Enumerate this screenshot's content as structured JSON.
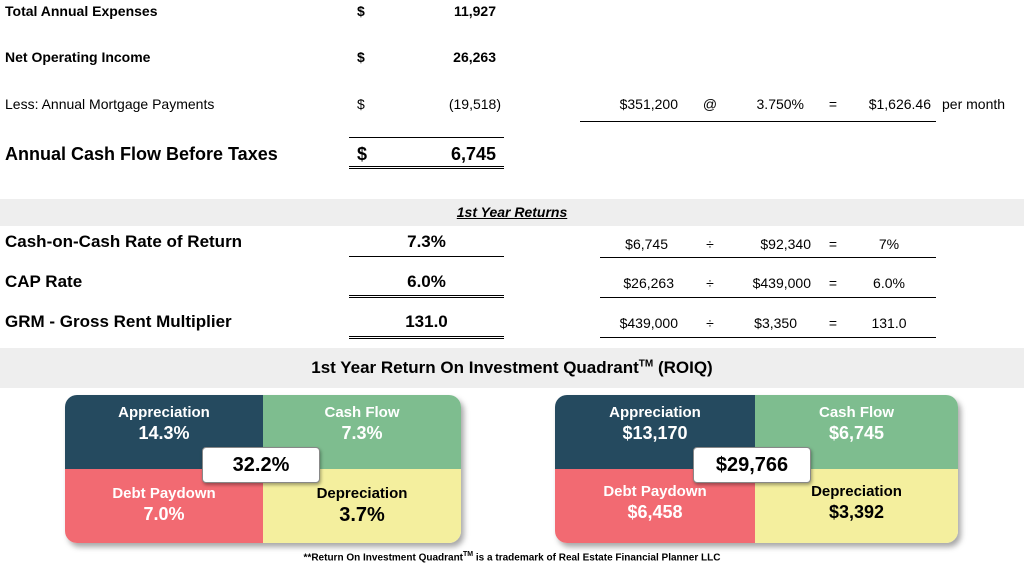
{
  "summary": {
    "expenses_label": "Total Annual Expenses",
    "expenses_symbol": "$",
    "expenses_value": "11,927",
    "noi_label": "Net Operating Income",
    "noi_symbol": "$",
    "noi_value": "26,263",
    "mortgage_label": "Less: Annual Mortgage Payments",
    "mortgage_symbol": "$",
    "mortgage_value": "(19,518)",
    "cashflow_label": "Annual Cash Flow Before Taxes",
    "cashflow_symbol": "$",
    "cashflow_value": "6,745"
  },
  "mortgage_calc": {
    "principal": "$351,200",
    "at": "@",
    "rate": "3.750%",
    "equals": "=",
    "payment": "$1,626.46",
    "period": "per month"
  },
  "returns": {
    "heading": "1st Year Returns",
    "rows": [
      {
        "label": "Cash-on-Cash Rate of Return",
        "value": "7.3%",
        "a": "$6,745",
        "op": "÷",
        "b": "$92,340",
        "eq": "=",
        "result": "7%"
      },
      {
        "label": "CAP Rate",
        "value": "6.0%",
        "a": "$26,263",
        "op": "÷",
        "b": "$439,000",
        "eq": "=",
        "result": "6.0%"
      },
      {
        "label": "GRM - Gross Rent Multiplier",
        "value": "131.0",
        "a": "$439,000",
        "op": "÷",
        "b": "$3,350",
        "eq": "=",
        "result": "131.0"
      }
    ]
  },
  "roiq": {
    "title": "1st Year Return On Investment Quadrant",
    "title_tm": "TM",
    "title_suffix": "(ROIQ)",
    "percent": {
      "appreciation_label": "Appreciation",
      "appreciation_value": "14.3%",
      "cashflow_label": "Cash Flow",
      "cashflow_value": "7.3%",
      "debt_label": "Debt Paydown",
      "debt_value": "7.0%",
      "depreciation_label": "Depreciation",
      "depreciation_value": "3.7%",
      "total": "32.2%"
    },
    "dollars": {
      "appreciation_label": "Appreciation",
      "appreciation_value": "$13,170",
      "cashflow_label": "Cash Flow",
      "cashflow_value": "$6,745",
      "debt_label": "Debt Paydown",
      "debt_value": "$6,458",
      "depreciation_label": "Depreciation",
      "depreciation_value": "$3,392",
      "total": "$29,766"
    },
    "footnote_prefix": "**Return On Investment Quadrant",
    "footnote_tm": "TM",
    "footnote_suffix": " is a trademark of Real Estate Financial Planner LLC"
  },
  "colors": {
    "appreciation": "#254a5f",
    "cash_flow": "#7ebd8f",
    "debt_paydown": "#f26a72",
    "depreciation": "#f4ef9e",
    "band": "#eeeeee"
  }
}
